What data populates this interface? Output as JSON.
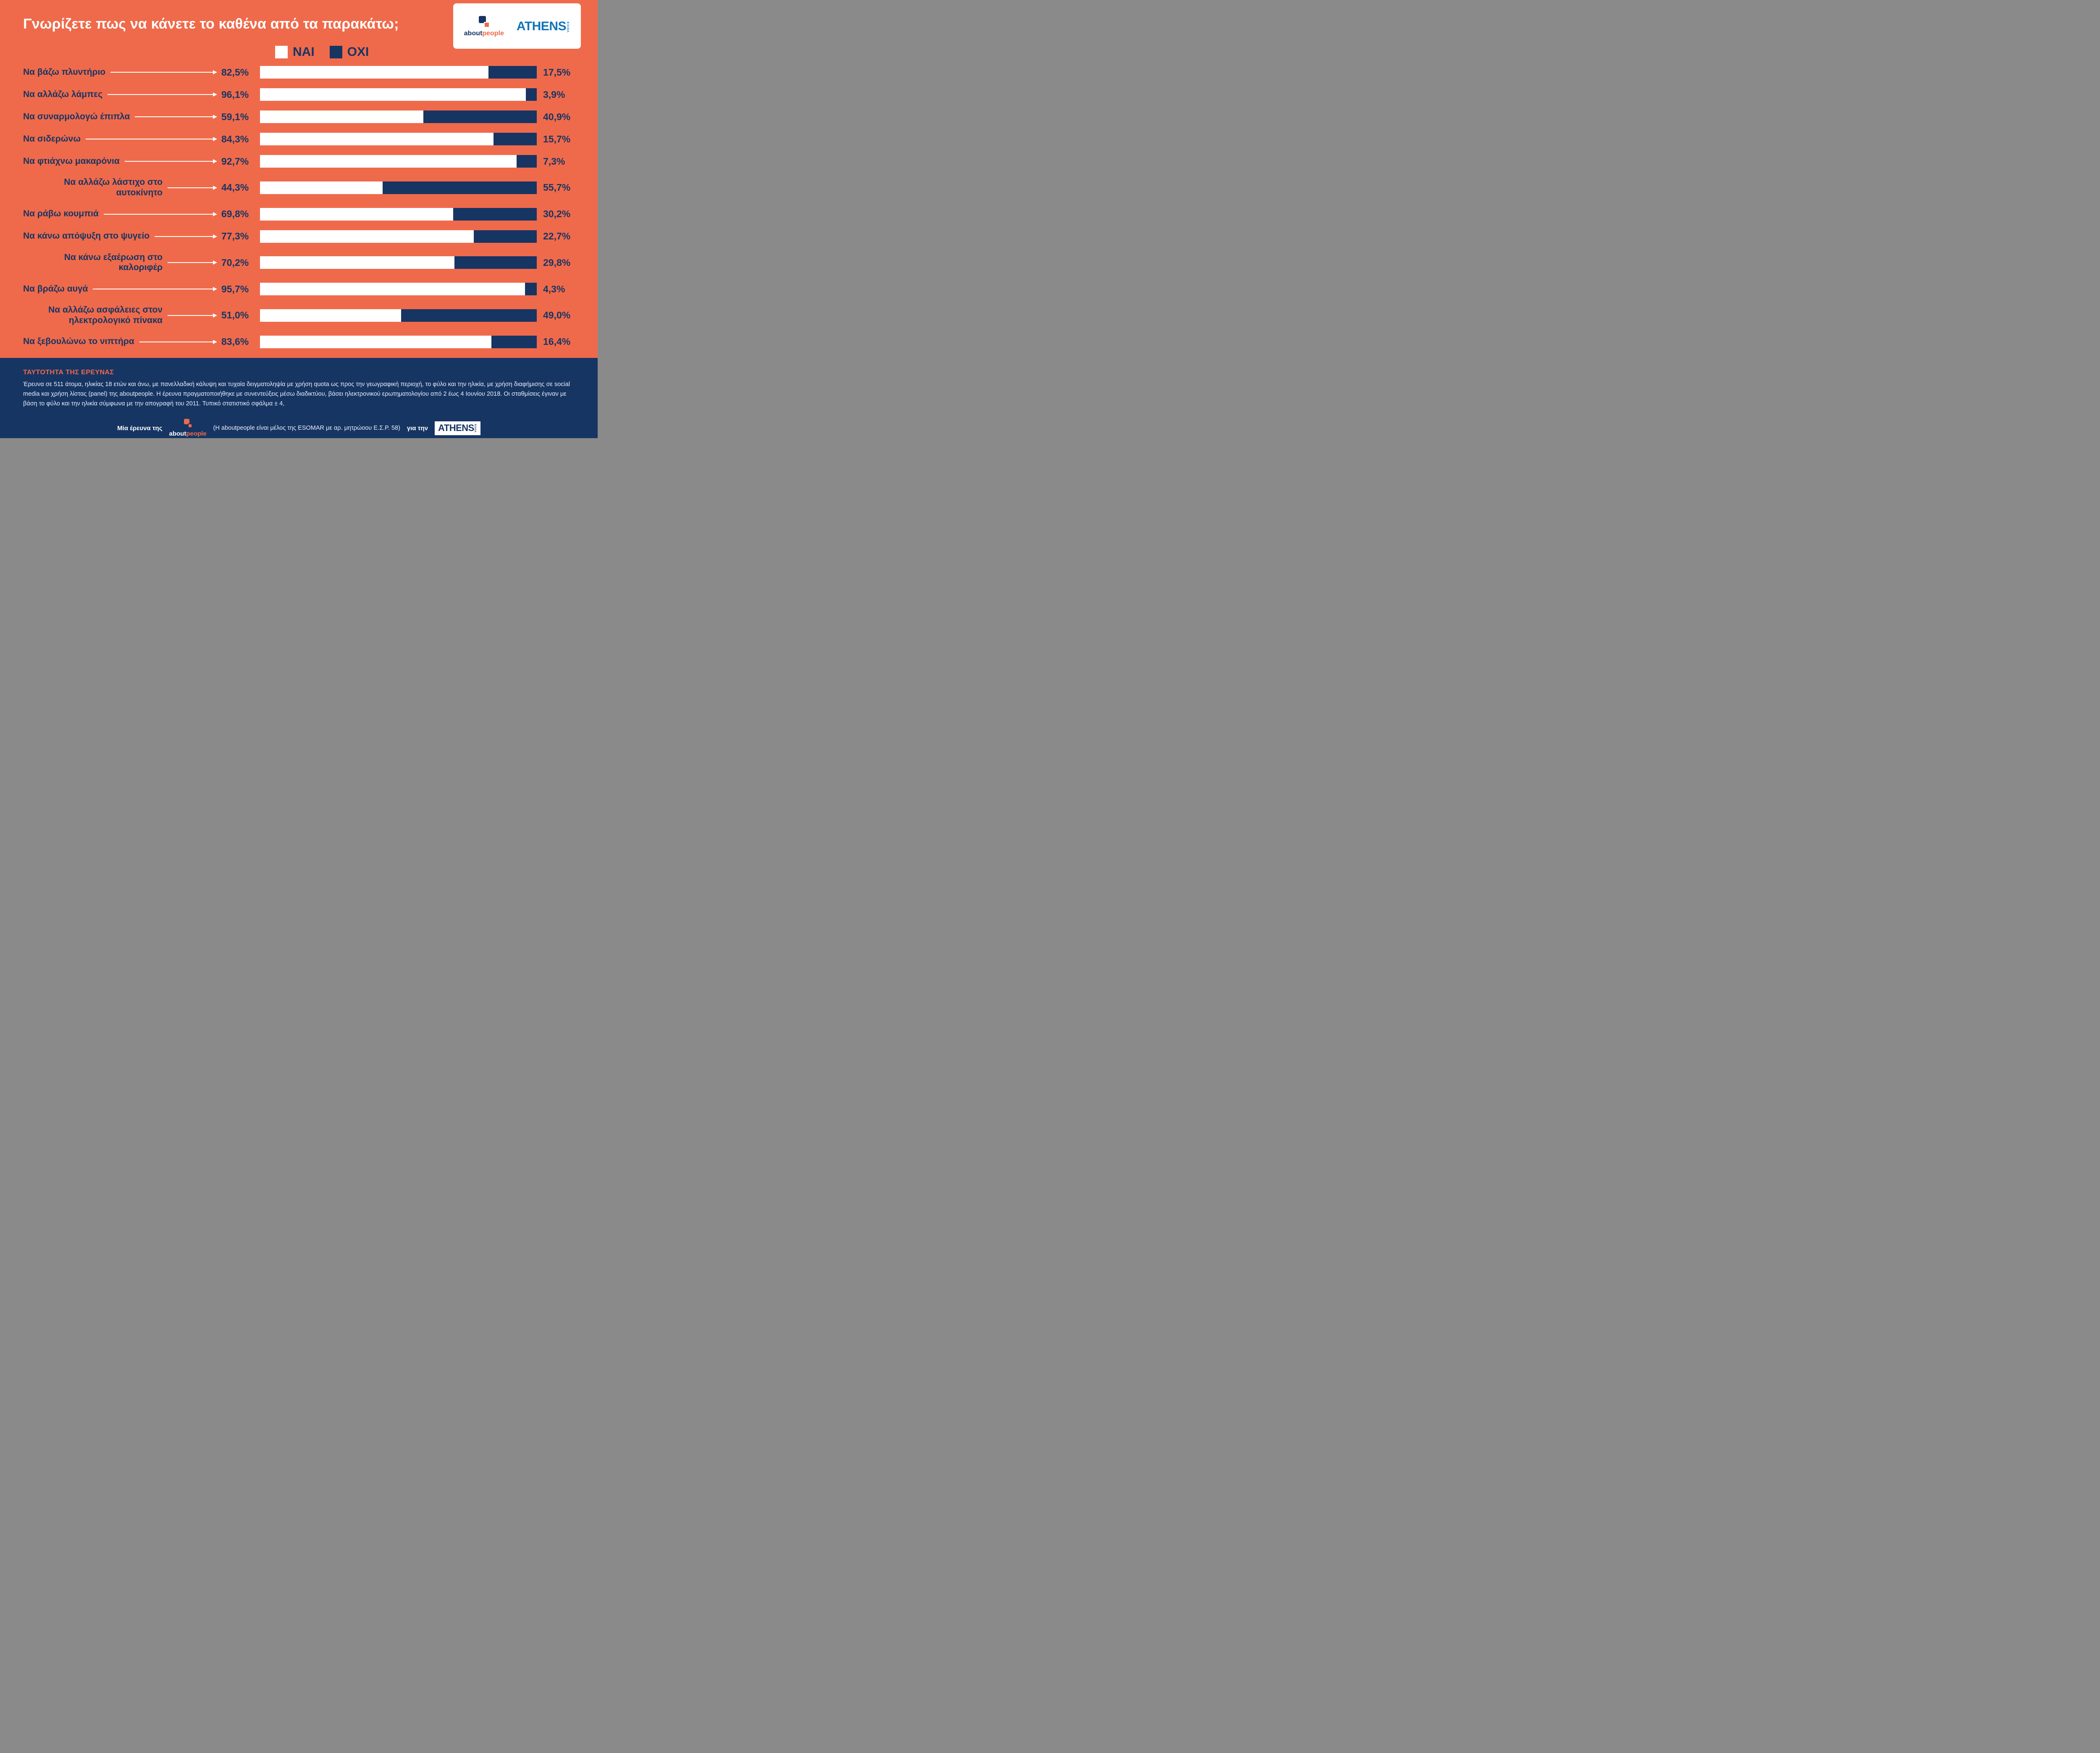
{
  "page": {
    "title": "Γνωρίζετε πως να κάνετε το καθένα από τα παρακάτω;",
    "colors": {
      "background": "#EF6A4B",
      "navy": "#173563",
      "white": "#FFFFFF",
      "athens_blue": "#1274B8"
    }
  },
  "legend": {
    "yes_label": "ΝΑΙ",
    "no_label": "ΟΧΙ"
  },
  "logos": {
    "aboutpeople": {
      "part1": "about",
      "part2": "people"
    },
    "athens_voice": {
      "name": "ATHENS",
      "sub": "VOICE"
    }
  },
  "chart_data": {
    "type": "bar",
    "orientation": "horizontal",
    "stacked": true,
    "xlim": [
      0,
      100
    ],
    "legend_position": "top",
    "categories": [
      "Να βάζω πλυντήριο",
      "Να αλλάζω λάμπες",
      "Να συναρμολογώ έπιπλα",
      "Να σιδερώνω",
      "Να φτιάχνω μακαρόνια",
      "Να αλλάζω λάστιχο στο αυτοκίνητο",
      "Να ράβω κουμπιά",
      "Να κάνω απόψυξη στο ψυγείο",
      "Να κάνω εξαέρωση στο καλοριφέρ",
      "Να βράζω αυγά",
      "Να αλλάζω ασφάλειες στον ηλεκτρολογικό πίνακα",
      "Να ξεβουλώνω το νιπτήρα"
    ],
    "series": [
      {
        "name": "ΝΑΙ",
        "color": "#FFFFFF",
        "values": [
          82.5,
          96.1,
          59.1,
          84.3,
          92.7,
          44.3,
          69.8,
          77.3,
          70.2,
          95.7,
          51.0,
          83.6
        ],
        "labels": [
          "82,5%",
          "96,1%",
          "59,1%",
          "84,3%",
          "92,7%",
          "44,3%",
          "69,8%",
          "77,3%",
          "70,2%",
          "95,7%",
          "51,0%",
          "83,6%"
        ]
      },
      {
        "name": "ΟΧΙ",
        "color": "#173563",
        "values": [
          17.5,
          3.9,
          40.9,
          15.7,
          7.3,
          55.7,
          30.2,
          22.7,
          29.8,
          4.3,
          49.0,
          16.4
        ],
        "labels": [
          "17,5%",
          "3,9%",
          "40,9%",
          "15,7%",
          "7,3%",
          "55,7%",
          "30,2%",
          "22,7%",
          "29,8%",
          "4,3%",
          "49,0%",
          "16,4%"
        ]
      }
    ],
    "title": "Γνωρίζετε πως να κάνετε το καθένα από τα παρακάτω;"
  },
  "footer": {
    "heading": "ΤΑΥΤΟΤΗΤΑ ΤΗΣ ΕΡΕΥΝΑΣ",
    "body": "Έρευνα σε 511 άτομα, ηλικίας 18 ετών και άνω, με πανελλαδική κάλυψη και τυχαία δειγματοληψία με χρήση quota ως προς την γεωγραφική περιοχή, το φύλο και την ηλικία, με χρήση διαφήμισης σε social media και χρήση λίστας (panel) της aboutpeople. Η έρευνα πραγματοποιήθηκε με συνεντεύξεις μέσω διαδικτύου, βάσει ηλεκτρονικού ερωτηματολογίου από 2 έως 4 Ιουνίου 2018. Οι σταθμίσεις έγιναν με βάση το φύλο και την ηλικία σύμφωνα με την απογραφή του 2011. Τυπικό στατιστικό σφάλμα ± 4,",
    "credit_prefix": "Μία έρευνα της",
    "credit_note": "(Η aboutpeople είναι μέλος της ESOMAR με αρ. μητρώοου Ε.Σ.Ρ. 58)",
    "credit_for": "για την"
  }
}
